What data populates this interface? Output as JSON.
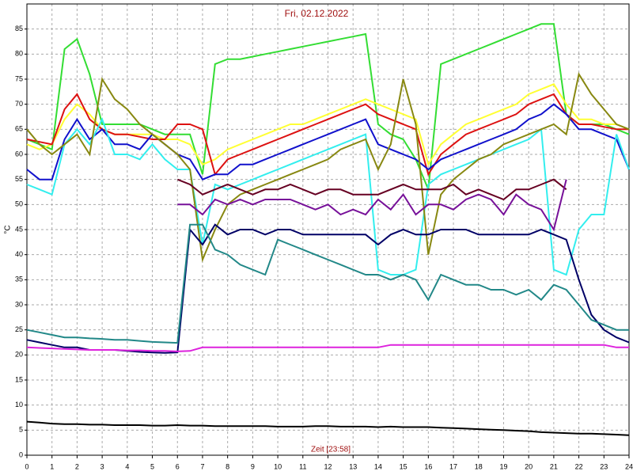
{
  "chart_data": {
    "type": "line",
    "title": "Fri, 02.12.2022",
    "x_label": "Zeit [23:58]",
    "y_label": "°C",
    "x": [
      0,
      0.5,
      1,
      1.5,
      2,
      2.5,
      3,
      3.5,
      4,
      4.5,
      5,
      5.5,
      6,
      6.5,
      7,
      7.5,
      8,
      8.5,
      9,
      9.5,
      10,
      10.5,
      11,
      11.5,
      12,
      12.5,
      13,
      13.5,
      14,
      14.5,
      15,
      15.5,
      16,
      16.5,
      17,
      17.5,
      18,
      18.5,
      19,
      19.5,
      20,
      20.5,
      21,
      21.5,
      22,
      22.5,
      23,
      23.5,
      24
    ],
    "xlim": [
      0,
      24
    ],
    "xticks": [
      0,
      1,
      2,
      3,
      4,
      5,
      6,
      7,
      8,
      9,
      10,
      11,
      12,
      13,
      14,
      15,
      16,
      17,
      18,
      19,
      20,
      21,
      22,
      23,
      24
    ],
    "ylim": [
      0,
      90
    ],
    "yticks": [
      0,
      5,
      10,
      15,
      20,
      25,
      30,
      35,
      40,
      45,
      50,
      55,
      60,
      65,
      70,
      75,
      80,
      85
    ],
    "grid": true,
    "series": [
      {
        "color": "#33dd33",
        "values": [
          63,
          62,
          61,
          81,
          83,
          76,
          66,
          66,
          66,
          66,
          65,
          64,
          64,
          64,
          56,
          78,
          79,
          79,
          79.5,
          80,
          80.5,
          81,
          81.5,
          82,
          82.5,
          83,
          83.5,
          84,
          66,
          64,
          63,
          59,
          53,
          78,
          79,
          80,
          81,
          82,
          83,
          84,
          85,
          86,
          86,
          68,
          66,
          66,
          66,
          65,
          64
        ]
      },
      {
        "color": "#ffff33",
        "values": [
          62,
          61,
          62,
          67,
          70,
          68,
          65,
          64,
          64,
          64,
          64,
          63,
          63,
          62,
          58,
          59,
          61,
          62,
          63,
          64,
          65,
          66,
          66,
          67,
          68,
          69,
          70,
          71,
          70,
          69,
          68,
          67,
          58,
          62,
          64,
          66,
          67,
          68,
          69,
          70,
          72,
          73,
          74,
          70,
          67,
          67,
          66,
          66,
          65
        ]
      },
      {
        "color": "#dd1111",
        "values": [
          63,
          62.5,
          62,
          69,
          72,
          67,
          65,
          64,
          64,
          63.5,
          63,
          63,
          66,
          66,
          65,
          56,
          59,
          60,
          61,
          62,
          63,
          64,
          65,
          66,
          67,
          68,
          69,
          70,
          68,
          67,
          66,
          65,
          56,
          60,
          62,
          64,
          65,
          66,
          67,
          68,
          70,
          71,
          72,
          68,
          66,
          66,
          65.5,
          65,
          65
        ]
      },
      {
        "color": "#1111cc",
        "values": [
          57,
          55,
          55,
          63,
          67,
          63,
          65,
          62,
          62,
          61,
          64,
          62,
          60,
          59,
          55,
          56,
          56,
          58,
          58,
          59,
          60,
          61,
          62,
          63,
          64,
          65,
          66,
          67,
          62,
          61,
          60,
          59,
          57,
          59,
          60,
          61,
          62,
          63,
          64,
          65,
          67,
          68,
          70,
          68,
          65,
          65,
          64,
          63,
          57
        ]
      },
      {
        "color": "#33eeee",
        "values": [
          54,
          53,
          52,
          62,
          65,
          62,
          67,
          60,
          60,
          59,
          62,
          59,
          57,
          57,
          42,
          54,
          53,
          54,
          55,
          56,
          57,
          58,
          59,
          60,
          61,
          62,
          63,
          64,
          37,
          36,
          36,
          37,
          54,
          56,
          57,
          58,
          59,
          60,
          61,
          62,
          63,
          65,
          37,
          36,
          45,
          48,
          48,
          64,
          57
        ]
      },
      {
        "color": "#888811",
        "values": [
          65,
          62,
          60,
          62,
          64,
          60,
          75,
          71,
          69,
          66,
          64,
          62,
          60,
          57,
          39,
          45,
          50,
          52,
          53,
          54,
          55,
          56,
          57,
          58,
          59,
          61,
          62,
          63,
          57,
          62,
          75,
          66,
          40,
          52,
          55,
          57,
          59,
          60,
          62,
          63,
          64,
          65,
          66,
          64,
          76,
          72,
          69,
          66,
          65
        ]
      },
      {
        "color": "#660022",
        "values": [
          null,
          null,
          null,
          null,
          null,
          null,
          null,
          null,
          null,
          null,
          null,
          null,
          55,
          54,
          52,
          53,
          54,
          53,
          52,
          53,
          53,
          54,
          53,
          52,
          53,
          53,
          52,
          52,
          52,
          53,
          54,
          53,
          53,
          53,
          54,
          52,
          53,
          52,
          51,
          53,
          53,
          54,
          55,
          53,
          null,
          null,
          null,
          null,
          null
        ]
      },
      {
        "color": "#771199",
        "values": [
          null,
          null,
          null,
          null,
          null,
          null,
          null,
          null,
          null,
          null,
          null,
          null,
          50,
          50,
          48,
          51,
          50,
          51,
          50,
          51,
          51,
          51,
          50,
          49,
          50,
          48,
          49,
          48,
          51,
          49,
          52,
          48,
          50,
          50,
          49,
          51,
          52,
          51,
          48,
          52,
          50,
          49,
          45,
          55,
          null,
          null,
          null,
          null,
          null
        ]
      },
      {
        "color": "#000066",
        "values": [
          23,
          22.5,
          22,
          21.5,
          21.5,
          21,
          21,
          21,
          20.8,
          20.6,
          20.5,
          20.4,
          20.5,
          45,
          42,
          46,
          44,
          45,
          45,
          44,
          45,
          45,
          44,
          44,
          44,
          44,
          44,
          44,
          42,
          44,
          45,
          44,
          44,
          45,
          45,
          45,
          44,
          44,
          44,
          44,
          44,
          45,
          44,
          43,
          35,
          28,
          25,
          23.5,
          22.5
        ]
      },
      {
        "color": "#228888",
        "values": [
          25,
          24.5,
          24,
          23.5,
          23.5,
          23.3,
          23.2,
          23,
          23,
          22.8,
          22.6,
          22.5,
          22.4,
          46,
          46,
          41,
          40,
          38,
          37,
          36,
          43,
          42,
          41,
          40,
          39,
          38,
          37,
          36,
          36,
          35,
          36,
          35,
          31,
          36,
          35,
          34,
          34,
          33,
          33,
          32,
          33,
          31,
          34,
          33,
          30,
          27,
          26,
          25,
          25
        ]
      },
      {
        "color": "#dd22dd",
        "values": [
          21.5,
          21.4,
          21.3,
          21.2,
          21.1,
          21,
          21,
          21,
          20.9,
          20.9,
          20.8,
          20.8,
          20.7,
          20.8,
          21.5,
          21.5,
          21.5,
          21.5,
          21.5,
          21.5,
          21.5,
          21.5,
          21.5,
          21.5,
          21.5,
          21.5,
          21.5,
          21.5,
          21.5,
          22,
          22,
          22,
          22,
          22,
          22,
          22,
          22,
          22,
          22,
          22,
          22,
          22,
          22,
          22,
          22,
          22,
          22,
          21.5,
          21.5
        ]
      },
      {
        "color": "#000000",
        "values": [
          6.7,
          6.5,
          6.3,
          6.2,
          6.2,
          6.1,
          6.1,
          6,
          6,
          6,
          5.9,
          5.9,
          6,
          5.9,
          5.9,
          5.8,
          5.8,
          5.8,
          5.8,
          5.8,
          5.7,
          5.7,
          5.7,
          5.8,
          5.8,
          5.7,
          5.7,
          5.7,
          5.6,
          5.7,
          5.6,
          5.6,
          5.6,
          5.5,
          5.4,
          5.3,
          5.2,
          5.1,
          5,
          4.9,
          4.8,
          4.6,
          4.5,
          4.4,
          4.3,
          4.3,
          4.2,
          4.1,
          4
        ]
      }
    ]
  }
}
